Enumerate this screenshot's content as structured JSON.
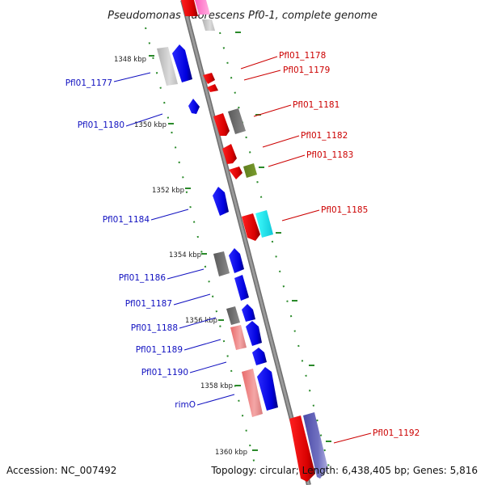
{
  "title": "Pseudomonas fluorescens Pf0-1, complete genome",
  "footer": {
    "accession": "Accession: NC_007492",
    "summary": "Topology: circular; Length: 6,438,405 bp; Genes: 5,816"
  },
  "colors": {
    "left_label": "#1010c0",
    "right_label": "#cc0000",
    "axis": "#808080",
    "tick": "#2a8a2a"
  },
  "kbp_ticks": [
    "1348 kbp",
    "1350 kbp",
    "1352 kbp",
    "1354 kbp",
    "1356 kbp",
    "1358 kbp",
    "1360 kbp"
  ],
  "left_labels": [
    "Pfl01_1177",
    "Pfl01_1180",
    "Pfl01_1184",
    "Pfl01_1186",
    "Pfl01_1187",
    "Pfl01_1188",
    "Pfl01_1189",
    "Pfl01_1190",
    "rimO"
  ],
  "right_labels": [
    "Pfl01_1178",
    "Pfl01_1179",
    "Pfl01_1181",
    "Pfl01_1182",
    "Pfl01_1183",
    "Pfl01_1185",
    "Pfl01_1192"
  ]
}
